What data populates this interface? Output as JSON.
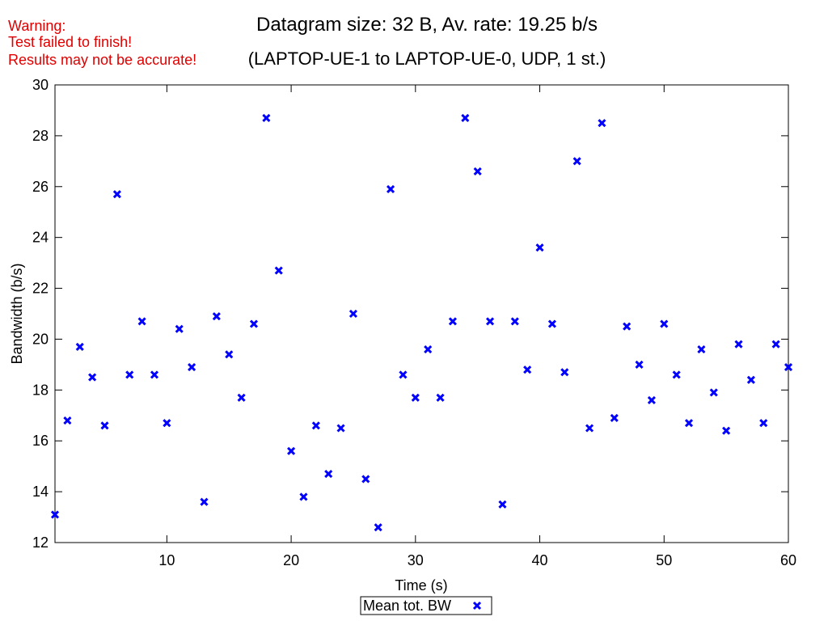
{
  "warning": {
    "line1": "Warning:",
    "line2": "Test failed to finish!",
    "line3": "Results may not be accurate!",
    "color": "#e00000"
  },
  "chart_data": {
    "type": "scatter",
    "title": "Datagram size: 32 B, Av. rate: 19.25 b/s",
    "subtitle": "(LAPTOP-UE-1 to LAPTOP-UE-0, UDP, 1 st.)",
    "xlabel": "Time (s)",
    "ylabel": "Bandwidth (b/s)",
    "xlim": [
      1,
      60
    ],
    "ylim": [
      12,
      30
    ],
    "xticks": [
      10,
      20,
      30,
      40,
      50,
      60
    ],
    "yticks": [
      12,
      14,
      16,
      18,
      20,
      22,
      24,
      26,
      28,
      30
    ],
    "grid": false,
    "legend_position": "bottom-center",
    "series": [
      {
        "name": "Mean tot. BW",
        "marker": "x",
        "color": "#0000ff",
        "x": [
          1,
          2,
          3,
          4,
          5,
          6,
          7,
          8,
          9,
          10,
          11,
          12,
          13,
          14,
          15,
          16,
          17,
          18,
          19,
          20,
          21,
          22,
          23,
          24,
          25,
          26,
          27,
          28,
          29,
          30,
          31,
          32,
          33,
          34,
          35,
          36,
          37,
          38,
          39,
          40,
          41,
          42,
          43,
          44,
          45,
          46,
          47,
          48,
          49,
          50,
          51,
          52,
          53,
          54,
          55,
          56,
          57,
          58,
          59,
          60
        ],
        "y": [
          13.1,
          16.8,
          19.7,
          18.5,
          16.6,
          25.7,
          18.6,
          20.7,
          18.6,
          16.7,
          20.4,
          18.9,
          13.6,
          20.9,
          19.4,
          17.7,
          20.6,
          28.7,
          22.7,
          15.6,
          13.8,
          16.6,
          14.7,
          16.5,
          21.0,
          14.5,
          12.6,
          25.9,
          18.6,
          17.7,
          19.6,
          17.7,
          20.7,
          28.7,
          26.6,
          20.7,
          13.5,
          20.7,
          18.8,
          23.6,
          20.6,
          18.7,
          27.0,
          16.5,
          28.5,
          16.9,
          20.5,
          19.0,
          17.6,
          20.6,
          18.6,
          16.7,
          19.6,
          17.9,
          16.4,
          19.8,
          18.4,
          16.7,
          19.8,
          18.9
        ]
      }
    ]
  }
}
